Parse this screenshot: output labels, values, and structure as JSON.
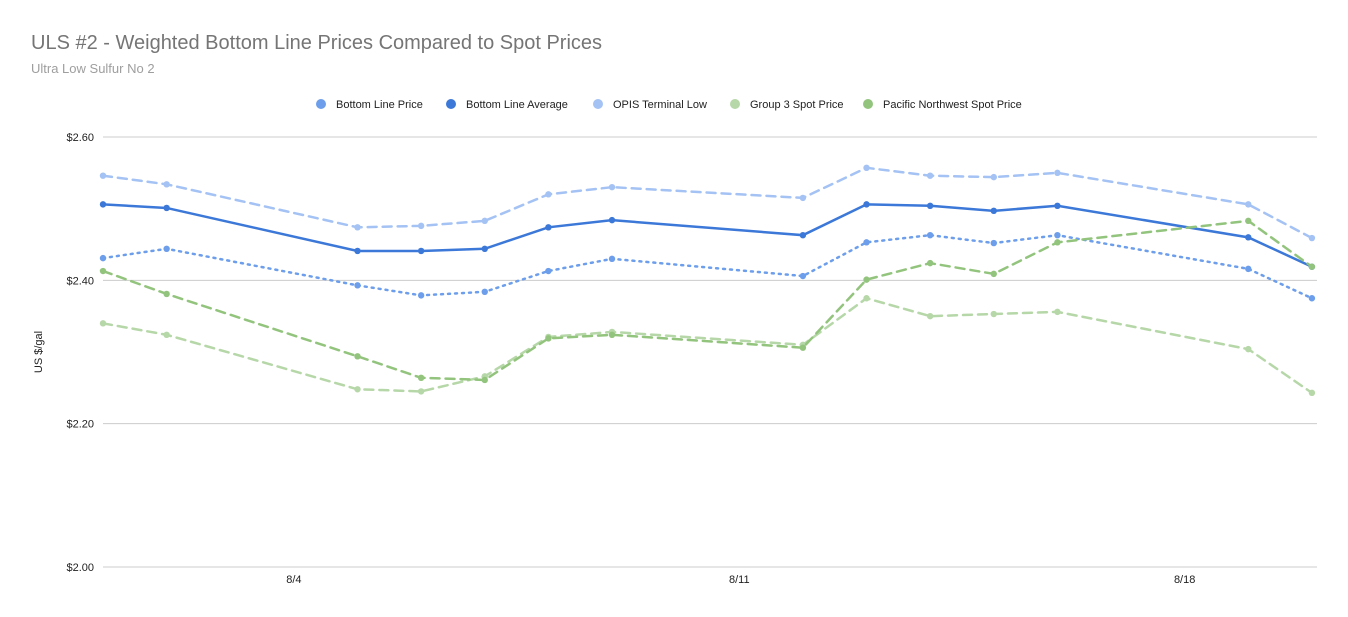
{
  "chart_data": {
    "type": "line",
    "title": "ULS #2 - Weighted Bottom Line Prices Compared to Spot Prices",
    "subtitle": "Ultra Low Sulfur No 2",
    "xlabel": "",
    "ylabel": "US $/gal",
    "ylim": [
      2.0,
      2.6
    ],
    "yticks": [
      "$2.00",
      "$2.20",
      "$2.40",
      "$2.60"
    ],
    "ytick_values": [
      2.0,
      2.2,
      2.4,
      2.6
    ],
    "xticks": [
      "8/4",
      "8/11",
      "8/18"
    ],
    "xtick_days": [
      4,
      11,
      18
    ],
    "xlim_days": [
      1,
      20.08
    ],
    "x_days": [
      1,
      2,
      5,
      6,
      7,
      8,
      9,
      12,
      13,
      14,
      15,
      16,
      19,
      20
    ],
    "grid": true,
    "legend": "top",
    "series": [
      {
        "name": "Bottom Line Price",
        "color": "#6d9eeb",
        "style": "dotted",
        "values": [
          2.431,
          2.444,
          2.393,
          2.379,
          2.384,
          2.413,
          2.43,
          2.406,
          2.453,
          2.463,
          2.452,
          2.463,
          2.416,
          2.375
        ]
      },
      {
        "name": "Bottom Line Average",
        "color": "#3c78d8",
        "style": "solid",
        "values": [
          2.506,
          2.501,
          2.441,
          2.441,
          2.444,
          2.474,
          2.484,
          2.463,
          2.506,
          2.504,
          2.497,
          2.504,
          2.46,
          2.419
        ]
      },
      {
        "name": "OPIS Terminal Low",
        "color": "#a4c2f4",
        "style": "dashed",
        "values": [
          2.546,
          2.534,
          2.474,
          2.476,
          2.483,
          2.52,
          2.53,
          2.515,
          2.557,
          2.546,
          2.544,
          2.55,
          2.506,
          2.459
        ]
      },
      {
        "name": "Group 3 Spot Price",
        "color": "#b6d7a8",
        "style": "dashed",
        "values": [
          2.34,
          2.324,
          2.248,
          2.245,
          2.266,
          2.321,
          2.328,
          2.31,
          2.375,
          2.35,
          2.353,
          2.356,
          2.304,
          2.243
        ]
      },
      {
        "name": "Pacific Northwest Spot Price",
        "color": "#93c47d",
        "style": "dashed",
        "values": [
          2.413,
          2.381,
          2.294,
          2.264,
          2.261,
          2.319,
          2.324,
          2.306,
          2.401,
          2.424,
          2.409,
          2.453,
          2.483,
          2.419
        ]
      }
    ]
  }
}
